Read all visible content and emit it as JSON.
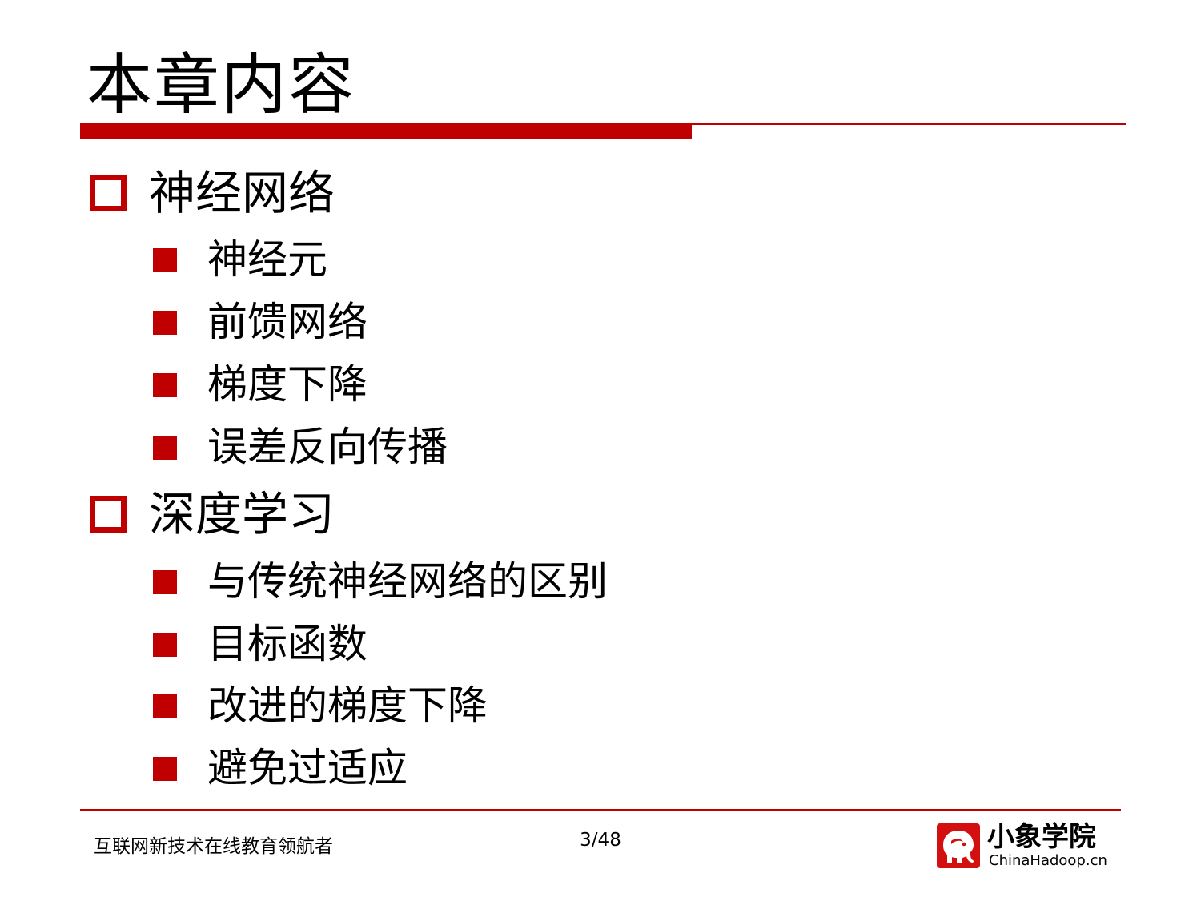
{
  "slide": {
    "title": "本章内容",
    "sections": [
      {
        "label": "神经网络",
        "items": [
          "神经元",
          "前馈网络",
          "梯度下降",
          "误差反向传播"
        ]
      },
      {
        "label": "深度学习",
        "items": [
          "与传统神经网络的区别",
          "目标函数",
          "改进的梯度下降",
          "避免过适应"
        ]
      }
    ]
  },
  "footer": {
    "slogan": "互联网新技术在线教育领航者",
    "page_number": "3/48",
    "logo_name": "小象学院",
    "logo_domain": "ChinaHadoop.cn",
    "logo_icon": "elephant-icon"
  },
  "colors": {
    "accent": "#c00000",
    "text": "#000000",
    "background": "#ffffff"
  }
}
